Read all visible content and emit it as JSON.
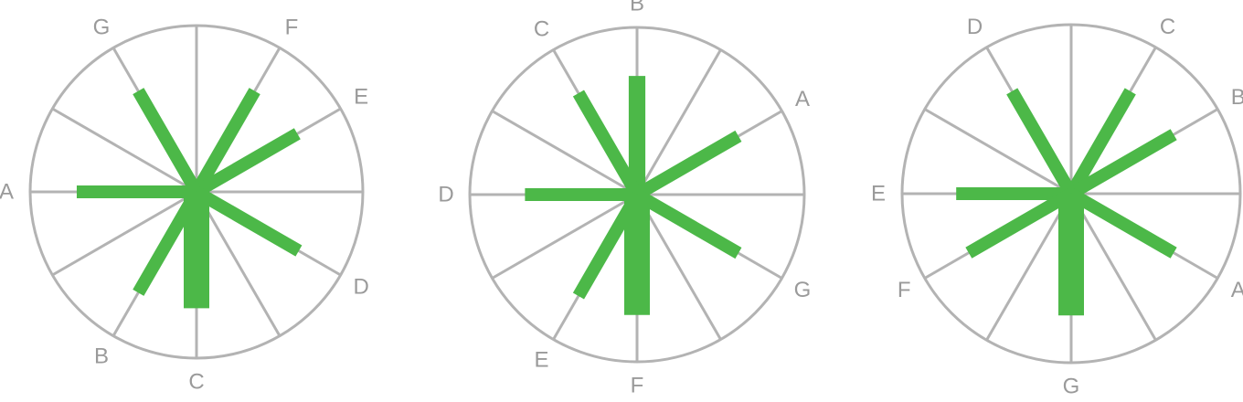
{
  "colors": {
    "rim": "#b3b3b3",
    "bar": "#4cb848",
    "label": "#9a9a9a"
  },
  "wheels": [
    {
      "labels": [
        {
          "text": "F",
          "angle": 60
        },
        {
          "text": "E",
          "angle": 30
        },
        {
          "text": "D",
          "angle": -30
        },
        {
          "text": "C",
          "angle": -90
        },
        {
          "text": "B",
          "angle": -120
        },
        {
          "text": "A",
          "angle": 180
        },
        {
          "text": "G",
          "angle": 120
        }
      ],
      "bars": [
        {
          "label": "G",
          "angle": 120,
          "length": 0.7,
          "weight": 1
        },
        {
          "label": "F",
          "angle": 60,
          "length": 0.7,
          "weight": 1
        },
        {
          "label": "E",
          "angle": 30,
          "length": 0.7,
          "weight": 1
        },
        {
          "label": "A",
          "angle": 180,
          "length": 0.72,
          "weight": 1
        },
        {
          "label": "D",
          "angle": -30,
          "length": 0.71,
          "weight": 1
        },
        {
          "label": "B",
          "angle": -120,
          "length": 0.7,
          "weight": 1
        },
        {
          "label": "C",
          "angle": -90,
          "length": 0.7,
          "weight": 2
        }
      ]
    },
    {
      "labels": [
        {
          "text": "B",
          "angle": 90
        },
        {
          "text": "C",
          "angle": 120
        },
        {
          "text": "A",
          "angle": 30
        },
        {
          "text": "D",
          "angle": 180
        },
        {
          "text": "G",
          "angle": -30
        },
        {
          "text": "E",
          "angle": -120
        },
        {
          "text": "F",
          "angle": -90
        }
      ],
      "bars": [
        {
          "label": "B",
          "angle": 90,
          "length": 0.71,
          "weight": 1.3
        },
        {
          "label": "C",
          "angle": 120,
          "length": 0.7,
          "weight": 1
        },
        {
          "label": "A",
          "angle": 30,
          "length": 0.7,
          "weight": 1
        },
        {
          "label": "D",
          "angle": 180,
          "length": 0.67,
          "weight": 1
        },
        {
          "label": "G",
          "angle": -30,
          "length": 0.7,
          "weight": 1
        },
        {
          "label": "E",
          "angle": -120,
          "length": 0.7,
          "weight": 1
        },
        {
          "label": "F",
          "angle": -90,
          "length": 0.72,
          "weight": 2
        }
      ]
    },
    {
      "labels": [
        {
          "text": "D",
          "angle": 120
        },
        {
          "text": "C",
          "angle": 60
        },
        {
          "text": "B",
          "angle": 30
        },
        {
          "text": "E",
          "angle": 180
        },
        {
          "text": "A",
          "angle": -30
        },
        {
          "text": "F",
          "angle": -150
        },
        {
          "text": "G",
          "angle": -90
        }
      ],
      "bars": [
        {
          "label": "D",
          "angle": 120,
          "length": 0.7,
          "weight": 1
        },
        {
          "label": "C",
          "angle": 60,
          "length": 0.7,
          "weight": 1
        },
        {
          "label": "B",
          "angle": 30,
          "length": 0.7,
          "weight": 1
        },
        {
          "label": "E",
          "angle": 180,
          "length": 0.68,
          "weight": 1
        },
        {
          "label": "A",
          "angle": -30,
          "length": 0.7,
          "weight": 1
        },
        {
          "label": "F",
          "angle": -150,
          "length": 0.7,
          "weight": 1
        },
        {
          "label": "G",
          "angle": -90,
          "length": 0.72,
          "weight": 2
        }
      ]
    }
  ]
}
